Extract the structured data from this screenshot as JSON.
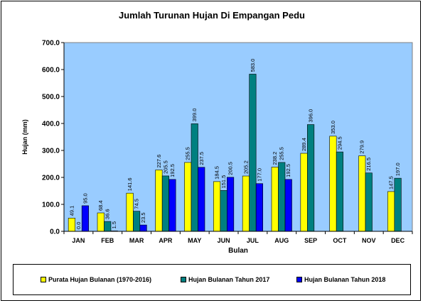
{
  "chart_data": {
    "type": "bar",
    "title": "Jumlah Turunan Hujan Di Empangan Pedu",
    "xlabel": "Bulan",
    "ylabel": "Hujan (mm)",
    "ylim": [
      0,
      700
    ],
    "yticks": [
      "0.0",
      "100.0",
      "200.0",
      "300.0",
      "400.0",
      "500.0",
      "600.0",
      "700.0"
    ],
    "grid": false,
    "legend_position": "bottom",
    "categories": [
      "JAN",
      "FEB",
      "MAR",
      "APR",
      "MAY",
      "JUN",
      "JUL",
      "AUG",
      "SEP",
      "OCT",
      "NOV",
      "DEC"
    ],
    "series": [
      {
        "name": "Purata Hujan Bulanan (1970-2016)",
        "color": "#ffff00",
        "values": [
          49.1,
          68.4,
          141.6,
          227.6,
          255.5,
          184.5,
          205.2,
          238.2,
          289.4,
          353.0,
          279.9,
          147.5
        ],
        "labels": [
          "49.1",
          "68.4",
          "141.6",
          "227.6",
          "255.5",
          "184.5",
          "205.2",
          "238.2",
          "289.4",
          "353.0",
          "279.9",
          "147.5"
        ]
      },
      {
        "name": "Hujan Bulanan Tahun 2017",
        "color": "#008080",
        "values": [
          0.0,
          36.6,
          74.5,
          205.5,
          399.0,
          151.5,
          583.0,
          255.5,
          396.0,
          294.5,
          216.5,
          197.0
        ],
        "labels": [
          "0.0",
          "36.6",
          "74.5",
          "205.5",
          "399.0",
          "151.5",
          "583.0",
          "255.5",
          "396.0",
          "294.5",
          "216.5",
          "197.0"
        ]
      },
      {
        "name": "Hujan Bulanan Tahun 2018",
        "color": "#0000ff",
        "values": [
          95.0,
          1.5,
          23.5,
          192.5,
          237.5,
          200.5,
          177.0,
          192.5,
          null,
          null,
          null,
          null
        ],
        "labels": [
          "95.0",
          "1.5",
          "23.5",
          "192.5",
          "237.5",
          "200.5",
          "177.0",
          "192.5",
          null,
          null,
          null,
          null
        ]
      }
    ],
    "colors": {
      "plot_background": "#99ccff",
      "axis": "#000000"
    }
  }
}
